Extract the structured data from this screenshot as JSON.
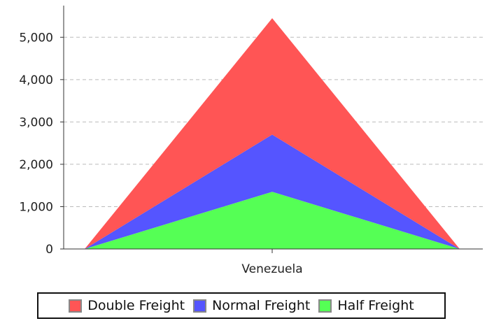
{
  "chart_data": {
    "type": "area",
    "stacked": true,
    "categories": [
      "",
      "Venezuela",
      ""
    ],
    "series": [
      {
        "name": "Half Freight",
        "values": [
          0,
          1350,
          0
        ],
        "color": "#55ff55"
      },
      {
        "name": "Normal Freight",
        "values": [
          0,
          1350,
          0
        ],
        "color": "#5555ff"
      },
      {
        "name": "Double Freight",
        "values": [
          0,
          2750,
          0
        ],
        "color": "#ff5555"
      }
    ],
    "y_ticks": [
      "0",
      "1,000",
      "2,000",
      "3,000",
      "4,000",
      "5,000"
    ],
    "ylim": [
      0,
      5500
    ],
    "grid": true,
    "legend_position": "bottom",
    "legend_order": [
      "Double Freight",
      "Normal Freight",
      "Half Freight"
    ]
  }
}
